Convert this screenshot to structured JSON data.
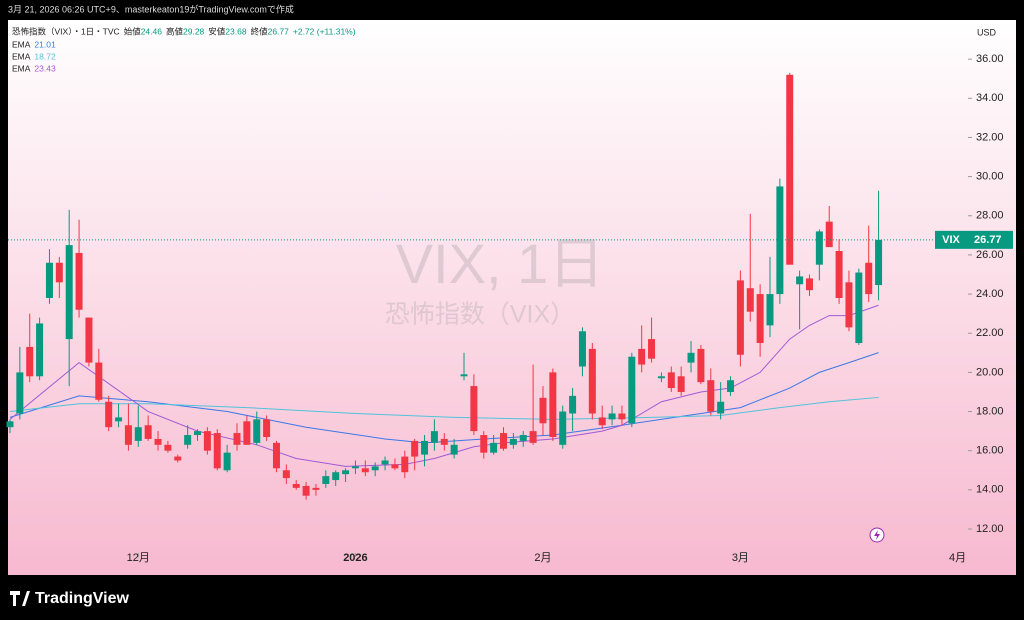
{
  "caption": "3月 21, 2026 06:26 UTC+9、masterkeaton19がTradingView.comで作成",
  "brand": "TradingView",
  "chart_data": {
    "type": "candlestick",
    "title": "VIX, 1日",
    "subtitle": "恐怖指数（VIX）",
    "symbol": "恐怖指数（VIX）・1日・TVC",
    "open_label": "始値",
    "high_label": "高値",
    "low_label": "安値",
    "close_label": "終値",
    "change": "+2.72 (+11.31%)",
    "currency": "USD",
    "ticker": "VIX",
    "up_color": "#089981",
    "down_color": "#f23645",
    "x": [
      0,
      1,
      2,
      3,
      4,
      5,
      6,
      7,
      8,
      9,
      10,
      11,
      12,
      13,
      14,
      15,
      16,
      17,
      18,
      19,
      20,
      21,
      22,
      23,
      24,
      25,
      26,
      27,
      28,
      29,
      30,
      31,
      32,
      33,
      34,
      35,
      36,
      37,
      38,
      39,
      40,
      41,
      42,
      43,
      44,
      45,
      46,
      47,
      48,
      49,
      50,
      51,
      52,
      53,
      54,
      55,
      56,
      57,
      58,
      59,
      60,
      61,
      62,
      63,
      64,
      65,
      66,
      67,
      68,
      69,
      70,
      71,
      72,
      73,
      74,
      75,
      76,
      77,
      78,
      79,
      80,
      81,
      82,
      83,
      84,
      85,
      86,
      87,
      88
    ],
    "open": [
      17.2,
      17.9,
      21.3,
      19.8,
      23.8,
      25.6,
      21.7,
      26.1,
      22.8,
      20.5,
      18.5,
      17.5,
      17.3,
      16.5,
      17.3,
      16.6,
      16.3,
      15.7,
      16.3,
      16.8,
      17.0,
      16.9,
      15.0,
      16.9,
      17.5,
      16.4,
      17.6,
      16.4,
      15.0,
      14.3,
      14.2,
      14.1,
      14.3,
      14.5,
      14.8,
      15.1,
      15.1,
      15.0,
      15.3,
      15.3,
      15.7,
      16.5,
      15.8,
      16.4,
      16.6,
      15.8,
      19.8,
      19.3,
      16.8,
      15.9,
      16.9,
      16.3,
      16.5,
      17.0,
      18.7,
      20.0,
      16.3,
      17.9,
      20.3,
      21.2,
      17.7,
      17.6,
      17.9,
      17.4,
      21.2,
      21.7,
      19.7,
      20.0,
      19.8,
      20.5,
      21.2,
      19.6,
      17.9,
      19.0,
      24.7,
      24.3,
      24.0,
      22.4,
      24.0,
      35.2,
      24.5,
      24.8,
      25.5,
      27.7,
      26.2,
      24.6,
      21.5,
      25.6,
      24.46
    ],
    "high": [
      17.6,
      21.3,
      23.0,
      22.8,
      26.3,
      25.9,
      28.3,
      27.8,
      22.8,
      21.2,
      18.8,
      18.4,
      18.4,
      18.3,
      17.8,
      17.0,
      16.5,
      15.8,
      17.3,
      17.1,
      17.2,
      17.1,
      16.3,
      17.4,
      17.8,
      18.0,
      17.8,
      16.5,
      15.3,
      14.5,
      14.4,
      14.3,
      15.0,
      15.0,
      15.1,
      15.5,
      15.5,
      15.4,
      15.7,
      15.6,
      16.0,
      16.6,
      16.8,
      17.6,
      16.9,
      16.6,
      21.0,
      19.9,
      17.0,
      16.8,
      17.2,
      16.9,
      17.0,
      20.4,
      19.3,
      20.2,
      18.3,
      19.2,
      22.3,
      21.5,
      18.3,
      18.3,
      18.3,
      21.0,
      22.4,
      22.8,
      20.0,
      20.3,
      20.3,
      21.6,
      21.4,
      20.2,
      19.5,
      19.8,
      25.2,
      28.1,
      24.5,
      25.9,
      29.9,
      35.3,
      25.2,
      25.0,
      27.3,
      28.5,
      26.8,
      25.2,
      25.3,
      27.5,
      29.28
    ],
    "low": [
      16.9,
      17.6,
      19.5,
      19.6,
      23.5,
      23.8,
      19.3,
      22.8,
      20.3,
      18.5,
      17.0,
      17.2,
      16.0,
      16.2,
      16.5,
      16.0,
      15.9,
      15.4,
      16.1,
      16.5,
      15.8,
      15.0,
      14.9,
      16.0,
      16.3,
      16.3,
      16.5,
      14.9,
      14.3,
      14.0,
      13.5,
      13.7,
      14.1,
      14.2,
      14.4,
      14.8,
      14.7,
      14.7,
      15.0,
      15.0,
      14.6,
      15.0,
      15.2,
      16.0,
      16.0,
      15.6,
      19.6,
      16.8,
      15.6,
      15.8,
      16.0,
      16.1,
      16.2,
      16.3,
      16.8,
      16.5,
      16.1,
      17.0,
      19.8,
      17.6,
      17.1,
      17.3,
      17.3,
      17.2,
      20.0,
      20.5,
      19.5,
      19.0,
      18.8,
      20.0,
      19.4,
      17.8,
      17.6,
      18.8,
      20.3,
      22.6,
      20.8,
      21.8,
      23.5,
      25.6,
      22.2,
      23.9,
      24.7,
      26.4,
      23.5,
      22.1,
      21.4,
      23.6,
      23.68
    ],
    "close": [
      17.5,
      20.0,
      19.8,
      22.5,
      25.6,
      24.6,
      26.5,
      23.2,
      20.5,
      18.6,
      17.2,
      17.7,
      16.3,
      17.2,
      16.6,
      16.3,
      16.0,
      15.5,
      16.8,
      17.0,
      16.0,
      15.1,
      15.9,
      16.3,
      16.3,
      17.6,
      16.7,
      15.1,
      14.6,
      14.1,
      13.7,
      14.0,
      14.7,
      14.9,
      15.0,
      15.2,
      14.9,
      15.2,
      15.5,
      15.1,
      14.9,
      15.7,
      16.5,
      17.0,
      16.3,
      16.3,
      19.9,
      17.0,
      15.9,
      16.4,
      16.1,
      16.6,
      16.8,
      16.4,
      17.4,
      16.7,
      18.0,
      18.8,
      22.1,
      17.9,
      17.3,
      17.9,
      17.6,
      20.8,
      20.4,
      20.7,
      19.8,
      19.2,
      19.0,
      21.0,
      19.5,
      18.0,
      18.5,
      19.6,
      20.9,
      23.1,
      21.5,
      24.0,
      29.5,
      25.5,
      24.9,
      24.2,
      27.2,
      26.4,
      23.8,
      22.3,
      25.1,
      24.0,
      26.77
    ],
    "series": [
      {
        "name": "EMA",
        "color": "#3b78e7",
        "x": [
          0,
          7,
          14,
          22,
          30,
          38,
          42,
          48,
          55,
          62,
          70,
          74,
          79,
          82,
          85,
          88
        ],
        "values": [
          17.7,
          18.8,
          18.5,
          18.0,
          17.2,
          16.6,
          16.4,
          16.6,
          16.8,
          17.3,
          17.9,
          18.2,
          19.2,
          20.0,
          20.5,
          21.01
        ]
      },
      {
        "name": "EMA",
        "color": "#4fc3dc",
        "x": [
          0,
          7,
          14,
          24,
          35,
          45,
          55,
          65,
          72,
          78,
          83,
          88
        ],
        "values": [
          18.0,
          18.4,
          18.4,
          18.2,
          17.9,
          17.7,
          17.6,
          17.7,
          17.8,
          18.2,
          18.5,
          18.72
        ]
      },
      {
        "name": "EMA",
        "color": "#a05ad6",
        "x": [
          0,
          7,
          14,
          19,
          25,
          29,
          34,
          40,
          43,
          47,
          50,
          55,
          60,
          62,
          66,
          70,
          73,
          76,
          79,
          81,
          83,
          85,
          88
        ],
        "values": [
          17.6,
          20.5,
          18.0,
          17.0,
          16.3,
          15.6,
          15.2,
          15.3,
          15.6,
          16.2,
          16.4,
          16.6,
          17.0,
          17.3,
          18.5,
          19.0,
          19.2,
          20.0,
          21.7,
          22.4,
          22.9,
          22.9,
          23.43
        ]
      }
    ],
    "xlim": [
      -0.2,
      97.06
    ],
    "xticks": [
      {
        "value": 13,
        "label": "12月"
      },
      {
        "value": 35,
        "label": "2026"
      },
      {
        "value": 54,
        "label": "2月"
      },
      {
        "value": 74,
        "label": "3月"
      },
      {
        "value": 96,
        "label": "4月"
      }
    ],
    "ylim": [
      9.65,
      38.0
    ],
    "yticks": [
      {
        "value": 12,
        "label": "12.00"
      },
      {
        "value": 14,
        "label": "14.00"
      },
      {
        "value": 16,
        "label": "16.00"
      },
      {
        "value": 18,
        "label": "18.00"
      },
      {
        "value": 20,
        "label": "20.00"
      },
      {
        "value": 22,
        "label": "22.00"
      },
      {
        "value": 24,
        "label": "24.00"
      },
      {
        "value": 26,
        "label": "26.00"
      },
      {
        "value": 28,
        "label": "28.00"
      },
      {
        "value": 30,
        "label": "30.00"
      },
      {
        "value": 32,
        "label": "32.00"
      },
      {
        "value": 34,
        "label": "34.00"
      },
      {
        "value": 36,
        "label": "36.00"
      }
    ]
  }
}
